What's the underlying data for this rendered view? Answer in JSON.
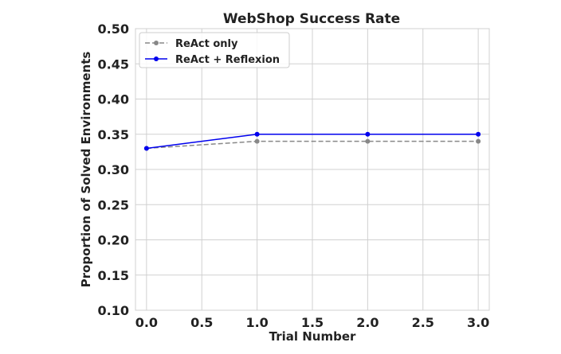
{
  "chart_data": {
    "type": "line",
    "title": "WebShop Success Rate",
    "xlabel": "Trial Number",
    "ylabel": "Proportion of Solved Environments",
    "xlim": [
      -0.1,
      3.1
    ],
    "ylim": [
      0.1,
      0.5
    ],
    "xticks": [
      "0.0",
      "0.5",
      "1.0",
      "1.5",
      "2.0",
      "2.5",
      "3.0"
    ],
    "yticks": [
      "0.10",
      "0.15",
      "0.20",
      "0.25",
      "0.30",
      "0.35",
      "0.40",
      "0.45",
      "0.50"
    ],
    "grid": true,
    "legend_position": "upper-left",
    "series": [
      {
        "name": "ReAct only",
        "x": [
          0,
          1,
          2,
          3
        ],
        "y": [
          0.33,
          0.34,
          0.34,
          0.34
        ],
        "color": "#888888",
        "linestyle": "dashed"
      },
      {
        "name": "ReAct + Reflexion",
        "x": [
          0,
          1,
          2,
          3
        ],
        "y": [
          0.33,
          0.35,
          0.35,
          0.35
        ],
        "color": "#0000ee",
        "linestyle": "solid"
      }
    ]
  }
}
